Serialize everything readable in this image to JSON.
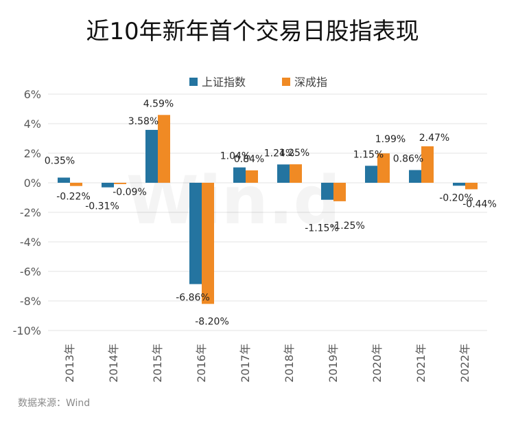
{
  "chart_data": {
    "type": "bar",
    "title": "近10年新年首个交易日股指表现",
    "categories": [
      "2013年",
      "2014年",
      "2015年",
      "2016年",
      "2017年",
      "2018年",
      "2019年",
      "2020年",
      "2021年",
      "2022年"
    ],
    "series": [
      {
        "name": "上证指数",
        "color": "#2474a0",
        "values": [
          0.35,
          -0.31,
          3.58,
          -6.86,
          1.04,
          1.24,
          -1.15,
          1.15,
          0.86,
          -0.2
        ],
        "labels": [
          "0.35%",
          "-0.31%",
          "3.58%",
          "-6.86%",
          "1.04%",
          "1.24%",
          "-1.15%",
          "1.15%",
          "0.86%",
          "-0.20%"
        ]
      },
      {
        "name": "深成指",
        "color": "#f08a24",
        "values": [
          -0.22,
          -0.09,
          4.59,
          -8.2,
          0.84,
          1.25,
          -1.25,
          1.99,
          2.47,
          -0.44
        ],
        "labels": [
          "-0.22%",
          "-0.09%",
          "4.59%",
          "-8.20%",
          "0.84%",
          "1.25%",
          "-1.25%",
          "1.99%",
          "2.47%",
          "-0.44%"
        ]
      }
    ],
    "y_ticks": [
      6,
      4,
      2,
      0,
      -2,
      -4,
      -6,
      -8,
      -10
    ],
    "y_tick_labels": [
      "6%",
      "4%",
      "2%",
      "0%",
      "-2%",
      "-4%",
      "-6%",
      "-8%",
      "-10%"
    ],
    "ylim": [
      -10,
      6
    ],
    "xlabel": "",
    "ylabel": "",
    "legend_position": "top-center",
    "grid": true
  },
  "watermark": "Win.d",
  "source": "数据来源：Wind"
}
